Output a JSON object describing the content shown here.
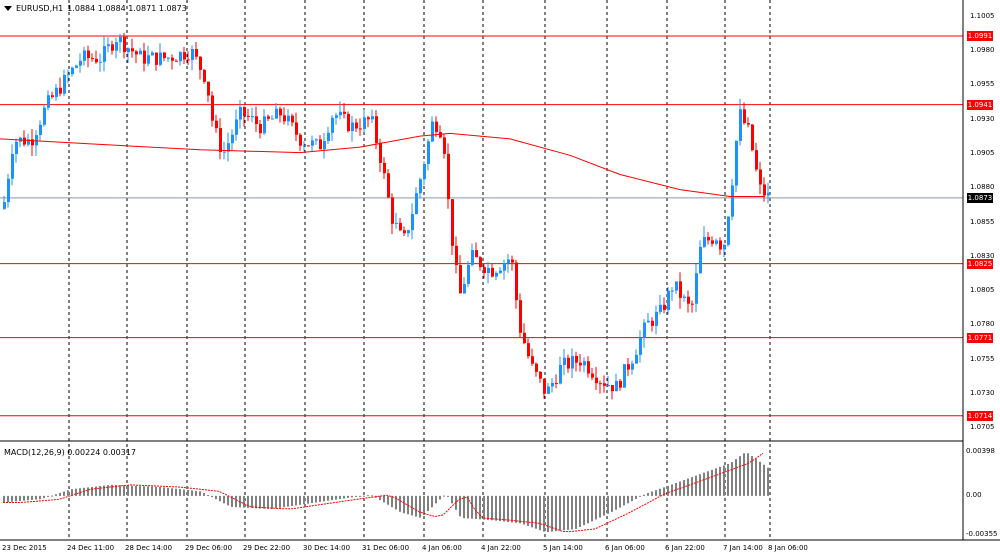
{
  "header": {
    "symbol": "EURUSD,H1",
    "ohlc": "1.0884 1.0884 1.0871 1.0873"
  },
  "macd": {
    "label": "MACD(12,26,9) 0.00224 0.00317",
    "axis_labels": [
      "0.00398",
      "0.00",
      "-0.00355"
    ]
  },
  "price_axis": {
    "labels": [
      "1.1005",
      "1.0980",
      "1.0955",
      "1.0930",
      "1.0905",
      "1.0880",
      "1.0855",
      "1.0830",
      "1.0805",
      "1.0780",
      "1.0755",
      "1.0730",
      "1.0705"
    ]
  },
  "levels": [
    {
      "value": "1.0991"
    },
    {
      "value": "1.0941"
    },
    {
      "value": "1.0825"
    },
    {
      "value": "1.0771"
    },
    {
      "value": "1.0714"
    }
  ],
  "current_price": "1.0873",
  "time_axis": {
    "labels": [
      "23 Dec 2015",
      "24 Dec 11:00",
      "28 Dec 14:00",
      "29 Dec 06:00",
      "29 Dec 22:00",
      "30 Dec 14:00",
      "31 Dec 06:00",
      "4 Jan 06:00",
      "4 Jan 22:00",
      "5 Jan 14:00",
      "6 Jan 06:00",
      "6 Jan 22:00",
      "7 Jan 14:00",
      "8 Jan 06:00"
    ]
  },
  "colors": {
    "bull": "#1e90ff",
    "bear": "#ff0000",
    "level": "#ff0000",
    "ma": "#ff0000",
    "grid": "#000000",
    "histogram": "#808080",
    "current": "#000000"
  }
}
